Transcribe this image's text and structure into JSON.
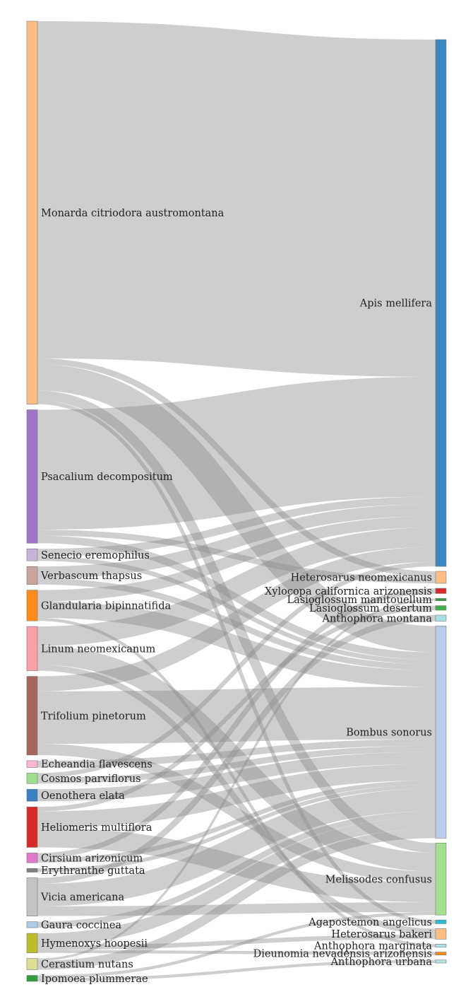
{
  "chart_data": {
    "type": "sankey",
    "nodes_left": [
      {
        "name": "Monarda citriodora austromontana",
        "color": "#fdbe85"
      },
      {
        "name": "Psacalium decompositum",
        "color": "#9e77c9"
      },
      {
        "name": "Senecio eremophilus",
        "color": "#c9b3d6"
      },
      {
        "name": "Verbascum thapsus",
        "color": "#c9a39c"
      },
      {
        "name": "Glandularia bipinnatifida",
        "color": "#ff8c1a"
      },
      {
        "name": "Linum neomexicanum",
        "color": "#f7a1a8"
      },
      {
        "name": "Trifolium pinetorum",
        "color": "#a3645c"
      },
      {
        "name": "Echeandia flavescens",
        "color": "#f9b7d6"
      },
      {
        "name": "Cosmos parviflorus",
        "color": "#9fde8f"
      },
      {
        "name": "Oenothera elata",
        "color": "#3a7fc0"
      },
      {
        "name": "Heliomeris multiflora",
        "color": "#d62b2b"
      },
      {
        "name": "Cirsium arizonicum",
        "color": "#e07ac8"
      },
      {
        "name": "Erythranthe guttata",
        "color": "#808080"
      },
      {
        "name": "Vicia americana",
        "color": "#c4c4c4"
      },
      {
        "name": "Gaura coccinea",
        "color": "#aecbe8"
      },
      {
        "name": "Hymenoxys hoopesii",
        "color": "#bcbd2c"
      },
      {
        "name": "Cerastium nutans",
        "color": "#dede97"
      },
      {
        "name": "Ipomoea plummerae",
        "color": "#2f9e3a"
      }
    ],
    "nodes_right": [
      {
        "name": "Apis mellifera",
        "color": "#3a87c2"
      },
      {
        "name": "Heterosarus neomexicanus",
        "color": "#fdbe85"
      },
      {
        "name": "Xylocopa californica arizonensis",
        "color": "#d62b2b"
      },
      {
        "name": "Lasioglossum manitouellum",
        "color": "#2f9e3a"
      },
      {
        "name": "Lasioglossum desertum",
        "color": "#3fae48"
      },
      {
        "name": "Anthophora montana",
        "color": "#a8e0e6"
      },
      {
        "name": "Bombus sonorus",
        "color": "#b7cdea"
      },
      {
        "name": "Melissodes confusus",
        "color": "#a3e08f"
      },
      {
        "name": "Agapostemon angelicus",
        "color": "#2bbcd0"
      },
      {
        "name": "Heterosarus bakeri",
        "color": "#fdbe85"
      },
      {
        "name": "Anthophora marginata",
        "color": "#aee3ea"
      },
      {
        "name": "Dieunomia nevadensis arizonensis",
        "color": "#ff8c1a"
      },
      {
        "name": "Anthophora urbana",
        "color": "#aee3ea"
      }
    ],
    "links": [
      {
        "source": "Monarda citriodora austromontana",
        "target": "Apis mellifera",
        "value": 45
      },
      {
        "source": "Monarda citriodora austromontana",
        "target": "Bombus sonorus",
        "value": 3.5
      },
      {
        "source": "Monarda citriodora austromontana",
        "target": "Melissodes confusus",
        "value": 1.3
      },
      {
        "source": "Monarda citriodora austromontana",
        "target": "Heterosarus neomexicanus",
        "value": 0.8
      },
      {
        "source": "Monarda citriodora austromontana",
        "target": "Agapostemon angelicus",
        "value": 0.5
      },
      {
        "source": "Psacalium decompositum",
        "target": "Apis mellifera",
        "value": 16
      },
      {
        "source": "Psacalium decompositum",
        "target": "Bombus sonorus",
        "value": 1.0
      },
      {
        "source": "Psacalium decompositum",
        "target": "Heterosarus neomexicanus",
        "value": 0.8
      },
      {
        "source": "Senecio eremophilus",
        "target": "Apis mellifera",
        "value": 1.0
      },
      {
        "source": "Senecio eremophilus",
        "target": "Bombus sonorus",
        "value": 0.6
      },
      {
        "source": "Verbascum thapsus",
        "target": "Apis mellifera",
        "value": 1.6
      },
      {
        "source": "Verbascum thapsus",
        "target": "Bombus sonorus",
        "value": 0.8
      },
      {
        "source": "Glandularia bipinnatifida",
        "target": "Apis mellifera",
        "value": 1.5
      },
      {
        "source": "Glandularia bipinnatifida",
        "target": "Bombus sonorus",
        "value": 2.2
      },
      {
        "source": "Glandularia bipinnatifida",
        "target": "Anthophora marginata",
        "value": 0.4
      },
      {
        "source": "Linum neomexicanum",
        "target": "Apis mellifera",
        "value": 2.6
      },
      {
        "source": "Linum neomexicanum",
        "target": "Melissodes confusus",
        "value": 2.5
      },
      {
        "source": "Linum neomexicanum",
        "target": "Heterosarus bakeri",
        "value": 0.8
      },
      {
        "source": "Trifolium pinetorum",
        "target": "Apis mellifera",
        "value": 2.0
      },
      {
        "source": "Trifolium pinetorum",
        "target": "Bombus sonorus",
        "value": 7.0
      },
      {
        "source": "Trifolium pinetorum",
        "target": "Melissodes confusus",
        "value": 1.5
      },
      {
        "source": "Echeandia flavescens",
        "target": "Bombus sonorus",
        "value": 0.9
      },
      {
        "source": "Cosmos parviflorus",
        "target": "Apis mellifera",
        "value": 0.6
      },
      {
        "source": "Cosmos parviflorus",
        "target": "Bombus sonorus",
        "value": 0.8
      },
      {
        "source": "Oenothera elata",
        "target": "Bombus sonorus",
        "value": 1.6
      },
      {
        "source": "Heliomeris multiflora",
        "target": "Bombus sonorus",
        "value": 2.2
      },
      {
        "source": "Heliomeris multiflora",
        "target": "Melissodes confusus",
        "value": 2.6
      },
      {
        "source": "Heliomeris multiflora",
        "target": "Lasioglossum desertum",
        "value": 0.6
      },
      {
        "source": "Cirsium arizonicum",
        "target": "Bombus sonorus",
        "value": 0.6
      },
      {
        "source": "Cirsium arizonicum",
        "target": "Xylocopa californica arizonensis",
        "value": 0.7
      },
      {
        "source": "Erythranthe guttata",
        "target": "Bombus sonorus",
        "value": 0.5
      },
      {
        "source": "Vicia americana",
        "target": "Bombus sonorus",
        "value": 3.0
      },
      {
        "source": "Vicia americana",
        "target": "Melissodes confusus",
        "value": 1.3
      },
      {
        "source": "Vicia americana",
        "target": "Anthophora montana",
        "value": 0.8
      },
      {
        "source": "Gaura coccinea",
        "target": "Bombus sonorus",
        "value": 0.8
      },
      {
        "source": "Hymenoxys hoopesii",
        "target": "Bombus sonorus",
        "value": 1.6
      },
      {
        "source": "Hymenoxys hoopesii",
        "target": "Heterosarus bakeri",
        "value": 0.6
      },
      {
        "source": "Hymenoxys hoopesii",
        "target": "Dieunomia nevadensis arizonensis",
        "value": 0.4
      },
      {
        "source": "Cerastium nutans",
        "target": "Bombus sonorus",
        "value": 1.2
      },
      {
        "source": "Cerastium nutans",
        "target": "Lasioglossum manitouellum",
        "value": 0.3
      },
      {
        "source": "Ipomoea plummerae",
        "target": "Anthophora urbana",
        "value": 0.4
      },
      {
        "source": "Ipomoea plummerae",
        "target": "Melissodes confusus",
        "value": 0.4
      }
    ]
  }
}
